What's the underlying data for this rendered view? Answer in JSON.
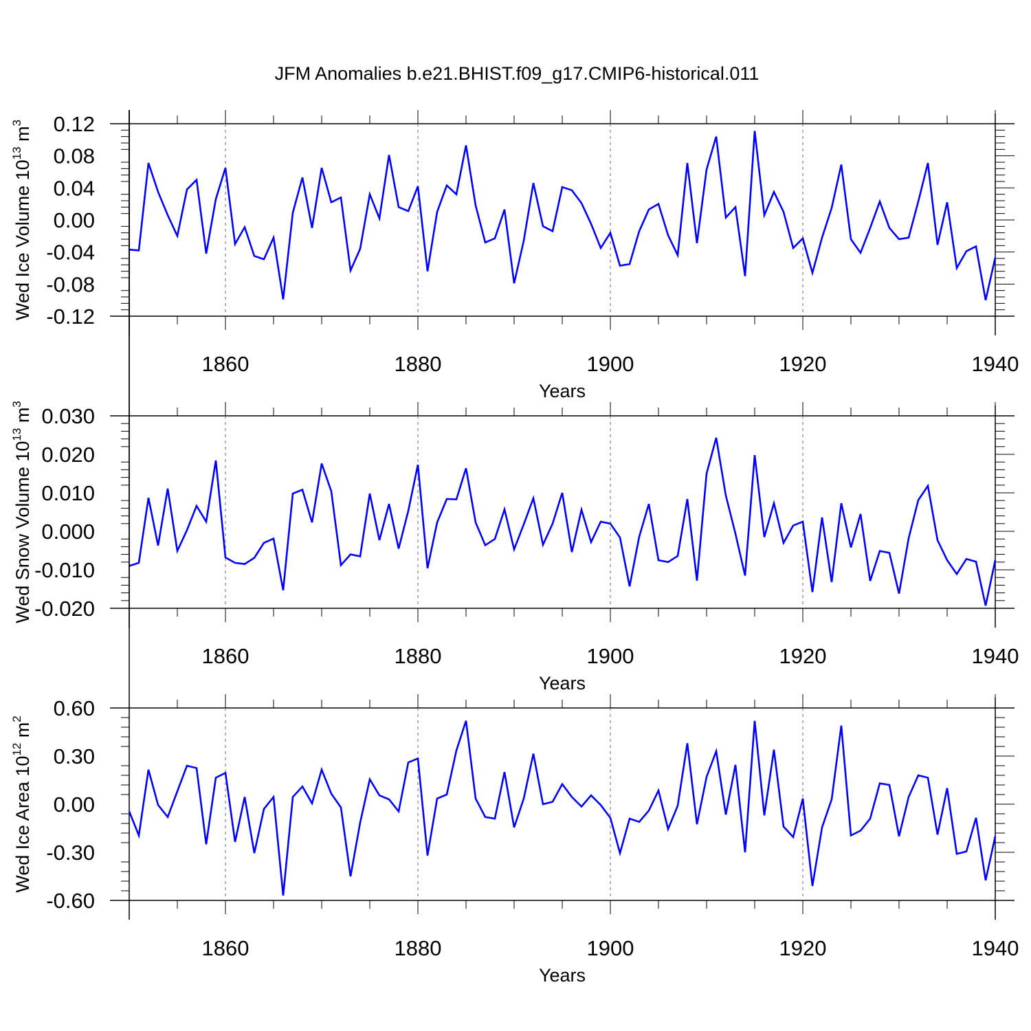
{
  "title": "JFM Anomalies b.e21.BHIST.f09_g17.CMIP6-historical.011",
  "line_color": "#0000ff",
  "chart_data": [
    {
      "type": "line",
      "ylabel_main": "Wed Ice Volume 10",
      "ylabel_sup": "13",
      "ylabel_unit": "m",
      "ylabel_unit_sup": "3",
      "xlabel": "Years",
      "xlim": [
        1850,
        1940
      ],
      "ylim": [
        -0.12,
        0.12
      ],
      "xticks": [
        1860,
        1880,
        1900,
        1920,
        1940
      ],
      "yticks": [
        -0.12,
        -0.08,
        -0.04,
        0.0,
        0.04,
        0.08,
        0.12
      ],
      "ytick_labels": [
        "-0.12",
        "-0.08",
        "-0.04",
        "0.00",
        "0.04",
        "0.08",
        "0.12"
      ],
      "x_start": 1850,
      "values": [
        -0.037,
        -0.038,
        0.071,
        0.035,
        0.006,
        -0.02,
        0.038,
        0.05,
        -0.042,
        0.026,
        0.065,
        -0.03,
        -0.009,
        -0.045,
        -0.049,
        -0.022,
        -0.099,
        0.009,
        0.053,
        -0.01,
        0.065,
        0.022,
        0.028,
        -0.063,
        -0.036,
        0.032,
        0.002,
        0.081,
        0.016,
        0.011,
        0.042,
        -0.064,
        0.01,
        0.043,
        0.032,
        0.093,
        0.018,
        -0.028,
        -0.023,
        0.013,
        -0.079,
        -0.026,
        0.046,
        -0.008,
        -0.014,
        0.041,
        0.037,
        0.021,
        -0.005,
        -0.035,
        -0.016,
        -0.057,
        -0.055,
        -0.014,
        0.013,
        0.02,
        -0.019,
        -0.044,
        0.071,
        -0.029,
        0.063,
        0.104,
        0.003,
        0.016,
        -0.07,
        0.111,
        0.006,
        0.035,
        0.01,
        -0.035,
        -0.023,
        -0.066,
        -0.022,
        0.015,
        0.069,
        -0.024,
        -0.041,
        -0.01,
        0.023,
        -0.01,
        -0.024,
        -0.022,
        0.023,
        0.071,
        -0.031,
        0.022,
        -0.06,
        -0.039,
        -0.033,
        -0.1,
        -0.047
      ]
    },
    {
      "type": "line",
      "ylabel_main": "Wed Snow Volume 10",
      "ylabel_sup": "13",
      "ylabel_unit": "m",
      "ylabel_unit_sup": "3",
      "xlabel": "Years",
      "xlim": [
        1850,
        1940
      ],
      "ylim": [
        -0.02,
        0.03
      ],
      "xticks": [
        1860,
        1880,
        1900,
        1920,
        1940
      ],
      "yticks": [
        -0.02,
        -0.01,
        0.0,
        0.01,
        0.02,
        0.03
      ],
      "ytick_labels": [
        "-0.020",
        "-0.010",
        "0.000",
        "0.010",
        "0.020",
        "0.030"
      ],
      "x_start": 1850,
      "values": [
        -0.009,
        -0.0082,
        0.0087,
        -0.0037,
        0.0111,
        -0.0051,
        0.0003,
        0.0066,
        0.0025,
        0.0184,
        -0.0068,
        -0.0082,
        -0.0085,
        -0.0069,
        -0.003,
        -0.0019,
        -0.0153,
        0.0098,
        0.0108,
        0.0023,
        0.0176,
        0.0104,
        -0.0088,
        -0.006,
        -0.0065,
        0.0098,
        -0.0023,
        0.0071,
        -0.0045,
        0.0053,
        0.0173,
        -0.0096,
        0.0023,
        0.0084,
        0.0083,
        0.0164,
        0.0023,
        -0.0036,
        -0.002,
        0.0057,
        -0.0047,
        0.0018,
        0.0086,
        -0.0035,
        0.002,
        0.01,
        -0.0054,
        0.0056,
        -0.0028,
        0.0025,
        0.002,
        -0.0016,
        -0.0143,
        -0.0014,
        0.0071,
        -0.0075,
        -0.008,
        -0.0064,
        0.0084,
        -0.0128,
        0.015,
        0.0243,
        0.0093,
        -0.0006,
        -0.0115,
        0.0198,
        -0.0015,
        0.0073,
        -0.003,
        0.0015,
        0.0025,
        -0.0158,
        0.0036,
        -0.0132,
        0.0073,
        -0.0042,
        0.0045,
        -0.0129,
        -0.0051,
        -0.0056,
        -0.0162,
        -0.0018,
        0.0081,
        0.0118,
        -0.0023,
        -0.0075,
        -0.0111,
        -0.0072,
        -0.0079,
        -0.0193,
        -0.0075
      ]
    },
    {
      "type": "line",
      "ylabel_main": "Wed Ice Area 10",
      "ylabel_sup": "12",
      "ylabel_unit": "m",
      "ylabel_unit_sup": "2",
      "xlabel": "Years",
      "xlim": [
        1850,
        1940
      ],
      "ylim": [
        -0.6,
        0.6
      ],
      "xticks": [
        1860,
        1880,
        1900,
        1920,
        1940
      ],
      "yticks": [
        -0.6,
        -0.3,
        0.0,
        0.3,
        0.6
      ],
      "ytick_labels": [
        "-0.60",
        "-0.30",
        "0.00",
        "0.30",
        "0.60"
      ],
      "x_start": 1850,
      "values": [
        -0.045,
        -0.195,
        0.215,
        -0.005,
        -0.08,
        0.08,
        0.24,
        0.225,
        -0.25,
        0.165,
        0.195,
        -0.235,
        0.045,
        -0.305,
        -0.03,
        0.045,
        -0.57,
        0.045,
        0.11,
        0.005,
        0.215,
        0.065,
        -0.02,
        -0.45,
        -0.115,
        0.155,
        0.055,
        0.03,
        -0.045,
        0.26,
        0.285,
        -0.32,
        0.035,
        0.06,
        0.335,
        0.52,
        0.035,
        -0.08,
        -0.09,
        0.2,
        -0.145,
        0.035,
        0.315,
        0.0,
        0.015,
        0.125,
        0.045,
        -0.015,
        0.055,
        -0.005,
        -0.085,
        -0.305,
        -0.09,
        -0.11,
        -0.04,
        0.085,
        -0.155,
        -0.01,
        0.38,
        -0.125,
        0.17,
        0.33,
        -0.065,
        0.245,
        -0.3,
        0.52,
        -0.07,
        0.34,
        -0.14,
        -0.205,
        0.035,
        -0.51,
        -0.145,
        0.03,
        0.49,
        -0.195,
        -0.165,
        -0.09,
        0.13,
        0.12,
        -0.2,
        0.045,
        0.18,
        0.165,
        -0.19,
        0.1,
        -0.31,
        -0.295,
        -0.085,
        -0.475,
        -0.2
      ]
    }
  ]
}
